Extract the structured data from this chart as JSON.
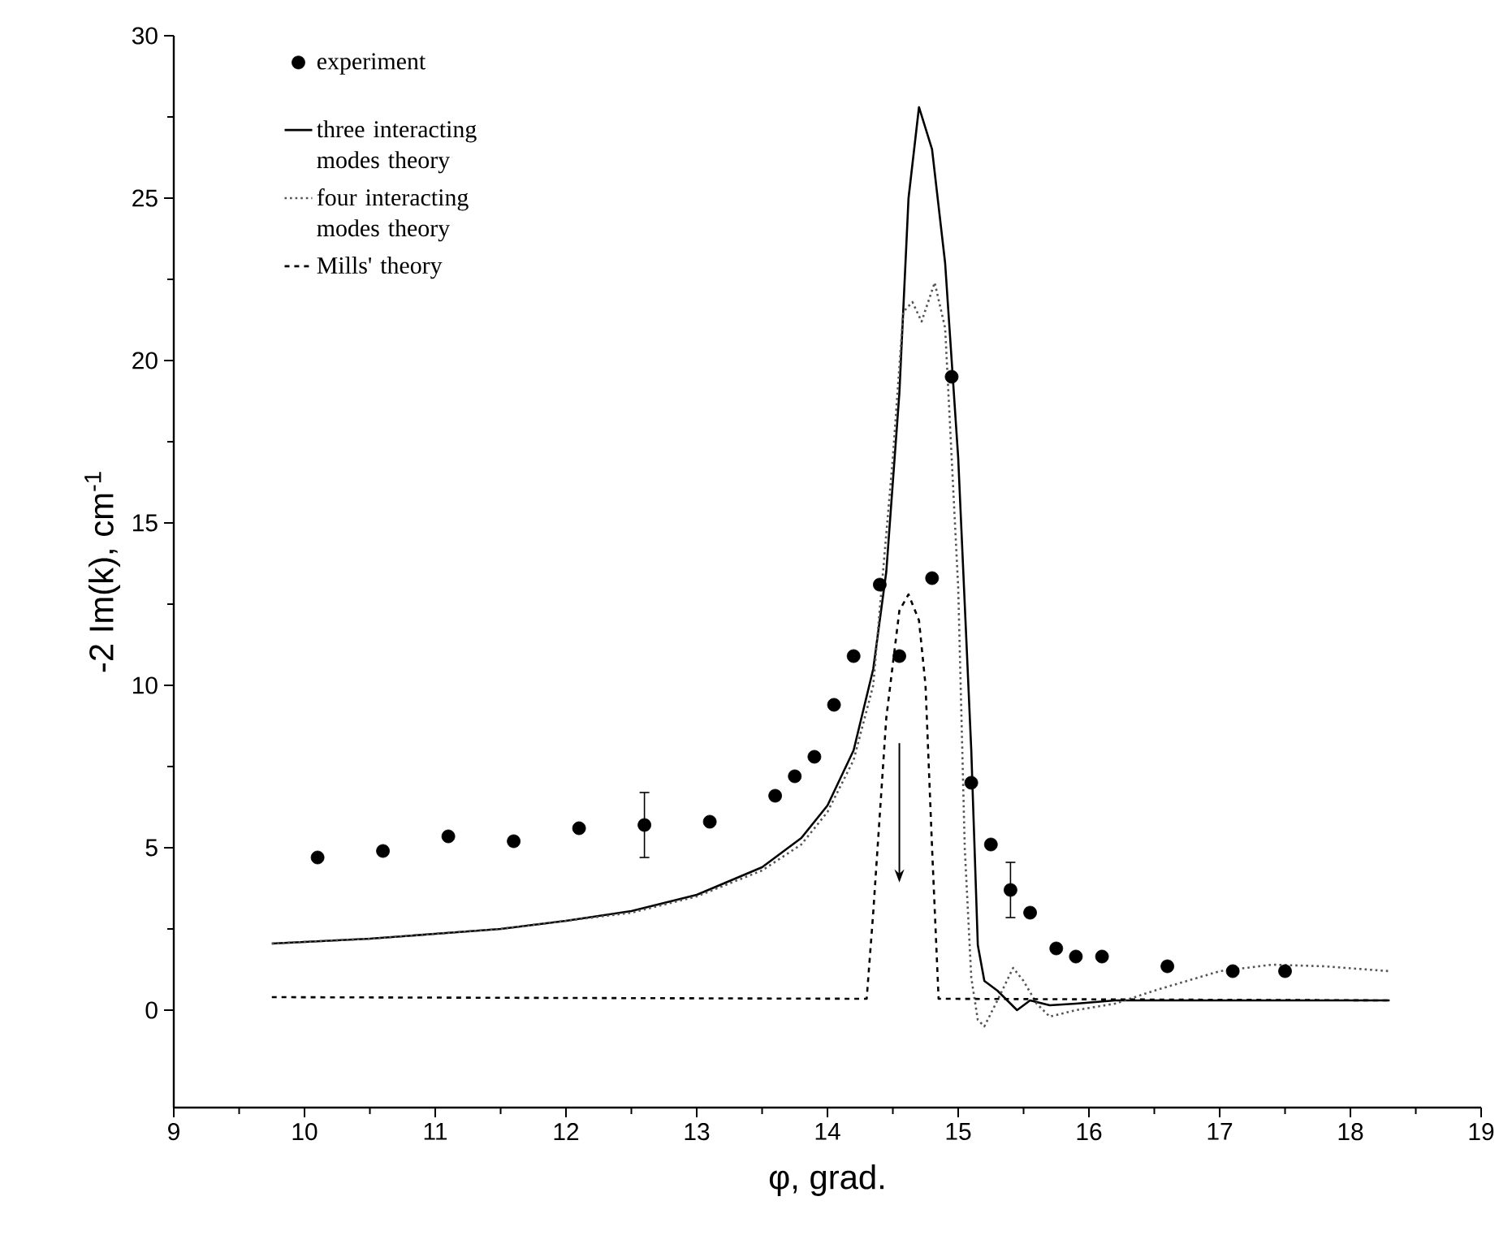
{
  "chart_data": {
    "type": "line",
    "xlabel": "φ, grad.",
    "ylabel": "-2 Im(k), cm$^{-1}$",
    "xlim": [
      9,
      19
    ],
    "ylim": [
      -3,
      30
    ],
    "xticks": [
      9,
      10,
      11,
      12,
      13,
      14,
      15,
      16,
      17,
      18,
      19
    ],
    "yticks": [
      0,
      5,
      10,
      15,
      20,
      25,
      30
    ],
    "grid": false,
    "legend": "top left",
    "series": [
      {
        "name": "experiment",
        "type": "scatter",
        "marker": "circle",
        "color": "#000000",
        "x": [
          10.1,
          10.6,
          11.1,
          11.6,
          12.1,
          12.6,
          13.1,
          13.6,
          13.75,
          13.9,
          14.05,
          14.2,
          14.4,
          14.55,
          14.8,
          14.95,
          15.1,
          15.25,
          15.4,
          15.55,
          15.75,
          15.9,
          16.1,
          16.6,
          17.1,
          17.5
        ],
        "values": [
          4.7,
          4.9,
          5.35,
          5.2,
          5.6,
          5.7,
          5.8,
          6.6,
          7.2,
          7.8,
          9.4,
          10.9,
          13.1,
          10.9,
          13.3,
          19.5,
          7.0,
          5.1,
          3.7,
          3.0,
          1.9,
          1.65,
          1.65,
          1.35,
          1.2,
          1.2
        ],
        "errors": [
          null,
          null,
          null,
          null,
          null,
          1.0,
          null,
          null,
          null,
          null,
          null,
          null,
          null,
          null,
          null,
          null,
          null,
          null,
          0.85,
          null,
          null,
          null,
          null,
          null,
          null,
          null
        ]
      },
      {
        "name": "three interacting modes theory",
        "type": "line",
        "marker": "none",
        "line_style": "solid",
        "color": "#000000",
        "x": [
          9.75,
          10.5,
          11,
          11.5,
          12,
          12.5,
          13,
          13.5,
          13.8,
          14,
          14.2,
          14.35,
          14.45,
          14.55,
          14.62,
          14.7,
          14.8,
          14.9,
          15.0,
          15.1,
          15.15,
          15.2,
          15.3,
          15.45,
          15.55,
          15.7,
          15.9,
          16.2,
          17,
          18.3
        ],
        "values": [
          2.05,
          2.2,
          2.35,
          2.5,
          2.75,
          3.05,
          3.55,
          4.4,
          5.3,
          6.3,
          8.0,
          10.5,
          13.5,
          19,
          25,
          27.8,
          26.5,
          23,
          17,
          8,
          2,
          0.9,
          0.6,
          0,
          0.3,
          0.15,
          0.2,
          0.3,
          0.3,
          0.3
        ]
      },
      {
        "name": "four interacting modes theory",
        "type": "line",
        "marker": "none",
        "line_style": "dotted",
        "color": "#555555",
        "x": [
          9.75,
          10.5,
          11,
          11.5,
          12,
          12.5,
          13,
          13.5,
          13.8,
          14,
          14.2,
          14.35,
          14.5,
          14.58,
          14.65,
          14.72,
          14.82,
          14.9,
          15.0,
          15.05,
          15.1,
          15.15,
          15.2,
          15.3,
          15.42,
          15.5,
          15.6,
          15.7,
          15.9,
          16.2,
          16.5,
          17.0,
          17.4,
          17.8,
          18.3
        ],
        "values": [
          2.05,
          2.2,
          2.35,
          2.5,
          2.75,
          3.0,
          3.5,
          4.3,
          5.1,
          6.1,
          7.7,
          10.0,
          17,
          21.5,
          21.8,
          21.2,
          22.4,
          21,
          13,
          5,
          1.0,
          -0.3,
          -0.5,
          0.3,
          1.3,
          0.9,
          0.2,
          -0.2,
          0,
          0.2,
          0.6,
          1.2,
          1.4,
          1.35,
          1.2
        ]
      },
      {
        "name": "Mills' theory",
        "type": "line",
        "marker": "none",
        "line_style": "dashed",
        "color": "#000000",
        "x": [
          9.75,
          14.3,
          14.35,
          14.45,
          14.55,
          14.62,
          14.7,
          14.75,
          14.8,
          14.85,
          18.3
        ],
        "values": [
          0.4,
          0.35,
          3,
          9,
          12.3,
          12.8,
          12,
          10,
          5,
          0.35,
          0.3
        ]
      }
    ]
  }
}
